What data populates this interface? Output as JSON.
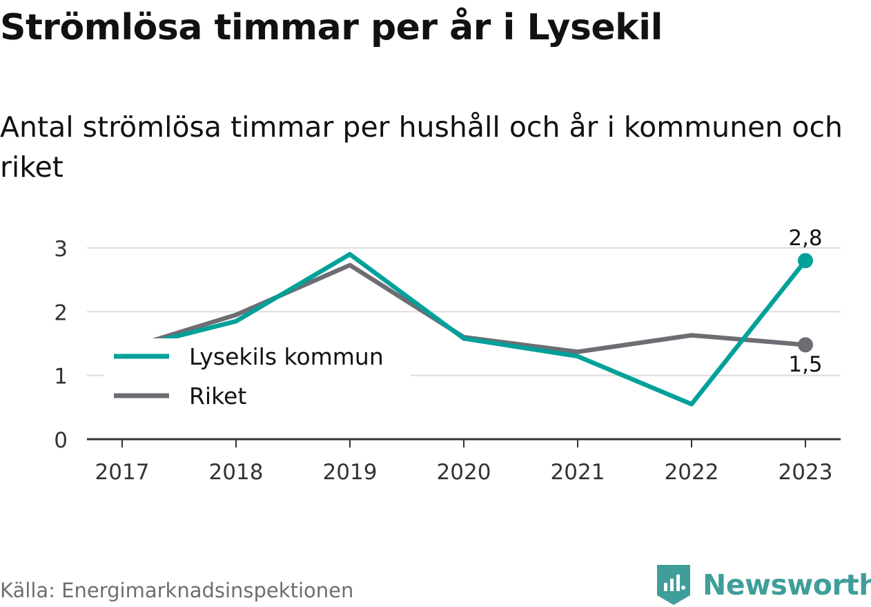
{
  "title": "Strömlösa timmar per år i Lysekil",
  "subtitle": "Antal strömlösa timmar per hushåll och år i kommunen och riket",
  "source": "Källa: Energimarknadsinspektionen",
  "brand": "Newsworthy",
  "colors": {
    "lysekil": "#00a19a",
    "riket": "#6e6d73",
    "grid": "#dcdcdc",
    "axis": "#333333",
    "brand": "#3f9e9a"
  },
  "chart_data": {
    "type": "line",
    "categories": [
      "2017",
      "2018",
      "2019",
      "2020",
      "2021",
      "2022",
      "2023"
    ],
    "series": [
      {
        "name": "Lysekils kommun",
        "values": [
          1.4,
          1.85,
          2.9,
          1.58,
          1.3,
          0.55,
          2.8
        ]
      },
      {
        "name": "Riket",
        "values": [
          1.4,
          1.95,
          2.73,
          1.6,
          1.37,
          1.63,
          1.48
        ]
      }
    ],
    "end_labels": [
      "2,8",
      "1,5"
    ],
    "yticks": [
      "0",
      "1",
      "2",
      "3"
    ],
    "ylim": [
      0,
      3
    ],
    "grid": true,
    "legend_position": "left"
  }
}
